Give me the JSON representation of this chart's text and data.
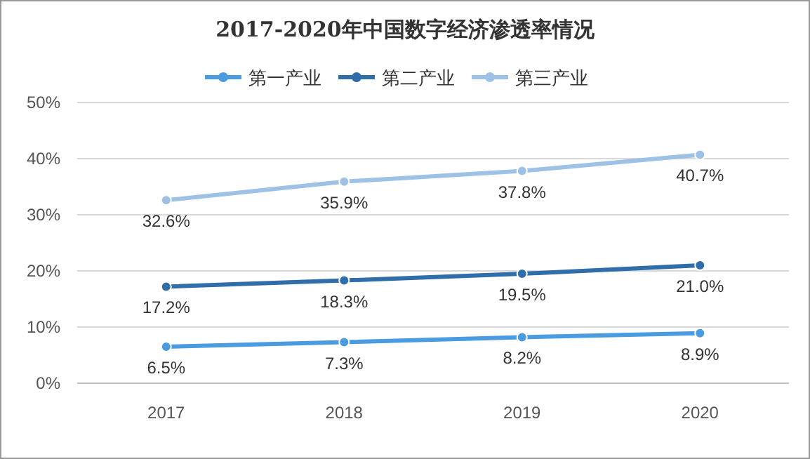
{
  "chart_data": {
    "type": "line",
    "title": "2017-2020年中国数字经济渗透率情况",
    "categories": [
      "2017",
      "2018",
      "2019",
      "2020"
    ],
    "series": [
      {
        "name": "第一产业",
        "color": "#4a9be0",
        "values": [
          6.5,
          7.3,
          8.2,
          8.9
        ],
        "value_labels": [
          "6.5%",
          "7.3%",
          "8.2%",
          "8.9%"
        ]
      },
      {
        "name": "第二产业",
        "color": "#2f6ea9",
        "values": [
          17.2,
          18.3,
          19.5,
          21.0
        ],
        "value_labels": [
          "17.2%",
          "18.3%",
          "19.5%",
          "21.0%"
        ]
      },
      {
        "name": "第三产业",
        "color": "#9ec2e6",
        "values": [
          32.6,
          35.9,
          37.8,
          40.7
        ],
        "value_labels": [
          "32.6%",
          "35.9%",
          "37.8%",
          "40.7%"
        ]
      }
    ],
    "ylim": [
      0,
      50
    ],
    "yticks": [
      {
        "value": 0,
        "label": "0%"
      },
      {
        "value": 10,
        "label": "10%"
      },
      {
        "value": 20,
        "label": "20%"
      },
      {
        "value": 30,
        "label": "30%"
      },
      {
        "value": 40,
        "label": "40%"
      },
      {
        "value": 50,
        "label": "50%"
      }
    ],
    "grid": "y",
    "legend": "top",
    "marker": "circle",
    "line_style": "solid"
  }
}
